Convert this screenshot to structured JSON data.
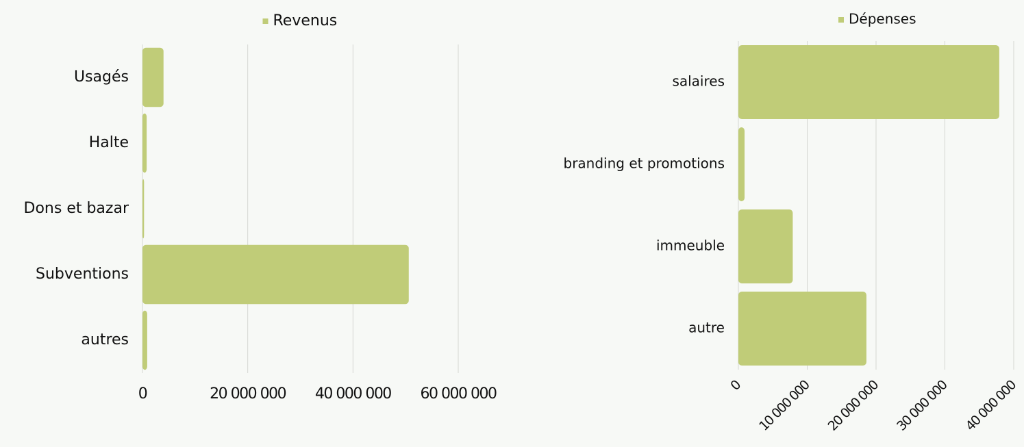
{
  "chart_data": [
    {
      "type": "bar",
      "orientation": "horizontal",
      "legend": "top",
      "series": [
        {
          "name": "Revenus",
          "color": "#c0cc78",
          "values": [
            4000000,
            800000,
            300000,
            50600000,
            900000
          ]
        }
      ],
      "categories": [
        "Usagés",
        "Halte",
        "Dons et bazar",
        "Subventions",
        "autres"
      ],
      "xlim": [
        0,
        60000000
      ],
      "xticks": [
        0,
        {
          "value": 20000000,
          "label": "20 000 000"
        },
        {
          "value": 40000000,
          "label": "40 000 000"
        },
        {
          "value": 60000000,
          "label": "60 000 000"
        }
      ],
      "grid": true
    },
    {
      "type": "bar",
      "orientation": "horizontal",
      "legend": "top",
      "series": [
        {
          "name": "Dépenses",
          "color": "#c0cc78",
          "values": [
            37900000,
            900000,
            7900000,
            18600000
          ]
        }
      ],
      "categories": [
        "salaires",
        "branding et promotions",
        "immeuble",
        "autre"
      ],
      "xlim": [
        0,
        40000000
      ],
      "xticks": [
        0,
        {
          "value": 10000000,
          "label": "10 000 000"
        },
        {
          "value": 20000000,
          "label": "20 000 000"
        },
        {
          "value": 30000000,
          "label": "30 000 000"
        },
        {
          "value": 40000000,
          "label": "40 000 000"
        }
      ],
      "grid": true
    }
  ]
}
